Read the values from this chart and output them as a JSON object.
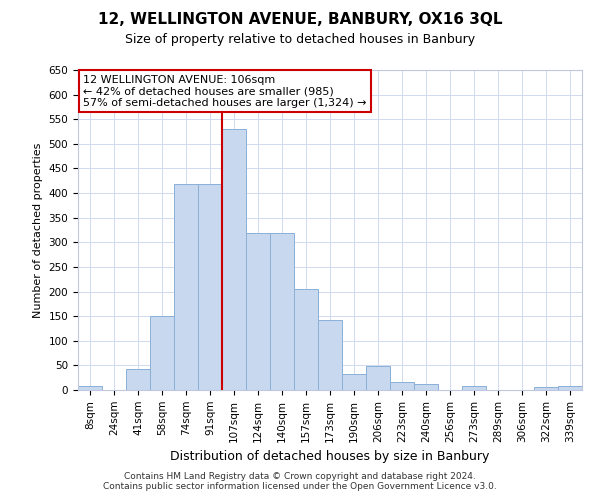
{
  "title1": "12, WELLINGTON AVENUE, BANBURY, OX16 3QL",
  "title2": "Size of property relative to detached houses in Banbury",
  "xlabel": "Distribution of detached houses by size in Banbury",
  "ylabel": "Number of detached properties",
  "categories": [
    "8sqm",
    "24sqm",
    "41sqm",
    "58sqm",
    "74sqm",
    "91sqm",
    "107sqm",
    "124sqm",
    "140sqm",
    "157sqm",
    "173sqm",
    "190sqm",
    "206sqm",
    "223sqm",
    "240sqm",
    "256sqm",
    "273sqm",
    "289sqm",
    "306sqm",
    "322sqm",
    "339sqm"
  ],
  "values": [
    8,
    0,
    43,
    150,
    418,
    418,
    530,
    318,
    318,
    205,
    143,
    33,
    48,
    16,
    13,
    0,
    8,
    0,
    0,
    7,
    8
  ],
  "bar_color": "#c8d8ee",
  "bar_edge_color": "#8ab0d8",
  "vline_color": "#cc0000",
  "annotation_lines": [
    "12 WELLINGTON AVENUE: 106sqm",
    "← 42% of detached houses are smaller (985)",
    "57% of semi-detached houses are larger (1,324) →"
  ],
  "annotation_box_facecolor": "#ffffff",
  "annotation_box_edgecolor": "#cc0000",
  "ylim": [
    0,
    650
  ],
  "yticks": [
    0,
    50,
    100,
    150,
    200,
    250,
    300,
    350,
    400,
    450,
    500,
    550,
    600,
    650
  ],
  "footnote1": "Contains HM Land Registry data © Crown copyright and database right 2024.",
  "footnote2": "Contains public sector information licensed under the Open Government Licence v3.0.",
  "bg_color": "#ffffff",
  "grid_color": "#d0daf0",
  "title1_fontsize": 11,
  "title2_fontsize": 9,
  "xlabel_fontsize": 9,
  "ylabel_fontsize": 8,
  "tick_fontsize": 7.5,
  "annot_fontsize": 8,
  "footnote_fontsize": 6.5
}
